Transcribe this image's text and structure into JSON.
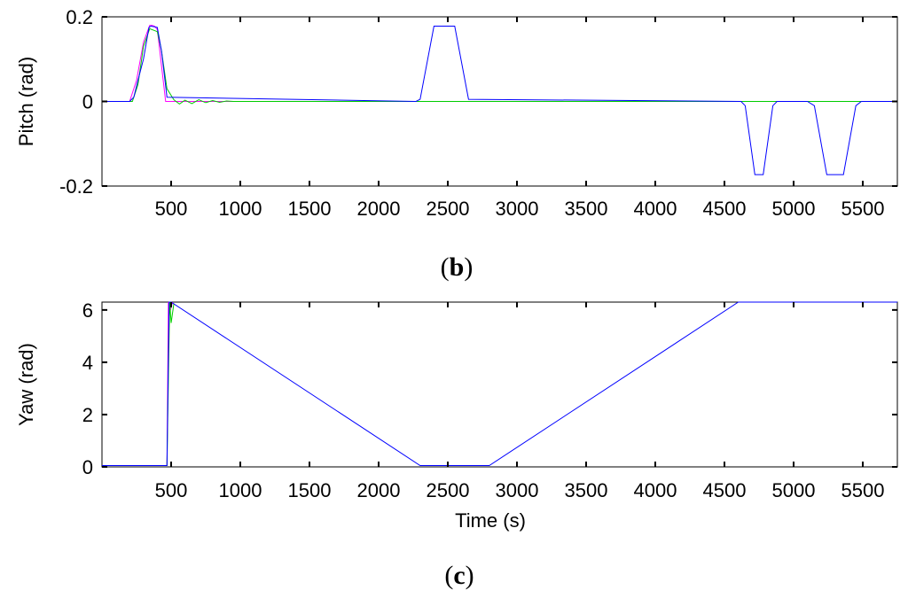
{
  "chart_data": [
    {
      "type": "line",
      "panel_label": "b",
      "title": "",
      "xlabel": "",
      "ylabel": "Pitch (rad)",
      "xlim": [
        0,
        5750
      ],
      "ylim": [
        -0.2,
        0.2
      ],
      "xticks": [
        500,
        1000,
        1500,
        2000,
        2500,
        3000,
        3500,
        4000,
        4500,
        5000,
        5500
      ],
      "yticks": [
        0.2,
        0,
        -0.2
      ],
      "ytick_labels": [
        "0.2",
        "0",
        "-0.2"
      ],
      "grid": false,
      "series_colors": [
        "#ff00ff",
        "#00cc00",
        "#0000ff"
      ],
      "series": [
        {
          "x": [
            0,
            200,
            250,
            300,
            345,
            360,
            380,
            400,
            460,
            5750
          ],
          "y": [
            0,
            0,
            0.05,
            0.14,
            0.18,
            0.18,
            0.178,
            0.17,
            0,
            0
          ]
        },
        {
          "x": [
            0,
            220,
            260,
            300,
            345,
            400,
            430,
            470,
            520,
            560,
            600,
            650,
            700,
            750,
            800,
            850,
            900,
            950,
            5750
          ],
          "y": [
            0,
            0,
            0.04,
            0.13,
            0.172,
            0.165,
            0.12,
            0.03,
            0.004,
            -0.006,
            0.003,
            -0.005,
            0.004,
            -0.003,
            0.002,
            -0.002,
            0.001,
            0,
            0
          ]
        },
        {
          "x": [
            0,
            200,
            230,
            260,
            300,
            340,
            355,
            400,
            430,
            470,
            2270,
            2300,
            2400,
            2550,
            2650,
            4620,
            4650,
            4720,
            4780,
            4850,
            4880,
            5100,
            5150,
            5240,
            5360,
            5450,
            5490,
            5750
          ],
          "y": [
            0,
            0,
            0.01,
            0.05,
            0.1,
            0.175,
            0.178,
            0.175,
            0.12,
            0.01,
            0,
            0.005,
            0.178,
            0.178,
            0.005,
            0,
            -0.01,
            -0.173,
            -0.173,
            -0.01,
            0,
            0,
            -0.01,
            -0.173,
            -0.173,
            -0.01,
            0,
            0
          ]
        }
      ]
    },
    {
      "type": "line",
      "panel_label": "c",
      "title": "",
      "xlabel": "Time (s)",
      "ylabel": "Yaw (rad)",
      "xlim": [
        0,
        5750
      ],
      "ylim": [
        0,
        6.3
      ],
      "xticks": [
        500,
        1000,
        1500,
        2000,
        2500,
        3000,
        3500,
        4000,
        4500,
        5000,
        5500
      ],
      "yticks": [
        0,
        2,
        4,
        6
      ],
      "ytick_labels": [
        "0",
        "2",
        "4",
        "6"
      ],
      "grid": false,
      "series_colors": [
        "#ff00ff",
        "#00cc00",
        "#0000ff"
      ],
      "series": [
        {
          "x": [
            0,
            470,
            480,
            495,
            510
          ],
          "y": [
            0.05,
            0.05,
            6.3,
            6.0,
            6.3
          ]
        },
        {
          "x": [
            0,
            470,
            485,
            490,
            495,
            500,
            520
          ],
          "y": [
            0.05,
            0.05,
            5.0,
            6.3,
            5.9,
            5.5,
            6.25
          ]
        },
        {
          "x": [
            0,
            470,
            485,
            500,
            2300,
            2800,
            4600,
            5750
          ],
          "y": [
            0.05,
            0.05,
            6.3,
            6.3,
            0.05,
            0.05,
            6.3,
            6.3
          ]
        }
      ]
    }
  ]
}
